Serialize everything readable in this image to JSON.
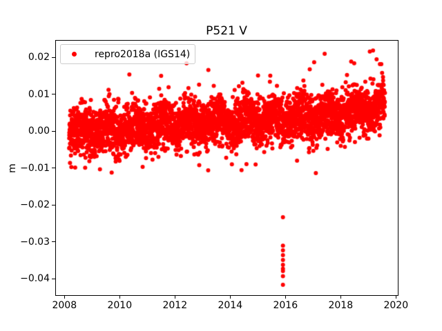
{
  "chart_data": {
    "type": "scatter",
    "title": "P521 V",
    "xlabel": "",
    "ylabel": "m",
    "background": "#ffffff",
    "legend": {
      "label": "repro2018a (IGS14)",
      "location": "upper left",
      "marker_color": "#ff0000"
    },
    "axes": {
      "xlim": [
        2007.6675,
        2020.0675
      ],
      "ylim": [
        -0.04424,
        0.02473
      ],
      "grid": false,
      "xticks": [
        {
          "value": 2008,
          "label": "2008"
        },
        {
          "value": 2010,
          "label": "2010"
        },
        {
          "value": 2012,
          "label": "2012"
        },
        {
          "value": 2014,
          "label": "2014"
        },
        {
          "value": 2016,
          "label": "2016"
        },
        {
          "value": 2018,
          "label": "2018"
        },
        {
          "value": 2020,
          "label": "2020"
        }
      ],
      "yticks": [
        {
          "value": 0.02,
          "label": "0.02"
        },
        {
          "value": 0.01,
          "label": "0.01"
        },
        {
          "value": 0.0,
          "label": "0.00"
        },
        {
          "value": -0.01,
          "label": "−0.01"
        },
        {
          "value": -0.02,
          "label": "−0.02"
        },
        {
          "value": -0.03,
          "label": "−0.03"
        },
        {
          "value": -0.04,
          "label": "−0.04"
        }
      ]
    },
    "series": [
      {
        "name": "repro2018a (IGS14)",
        "color": "#ff0000",
        "marker": "circle",
        "marker_radius_px": 3,
        "band": {
          "x_start": 2008.17,
          "x_end": 2019.6,
          "n_points": 3800,
          "seed": 20,
          "trend_keypoints": [
            [
              2008.2,
              -0.0002
            ],
            [
              2010.0,
              0.0004
            ],
            [
              2012.0,
              0.0019
            ],
            [
              2014.0,
              0.0027
            ],
            [
              2016.0,
              0.0036
            ],
            [
              2018.0,
              0.0048
            ],
            [
              2019.6,
              0.0068
            ]
          ],
          "noise_std": 0.0031,
          "seasonal_amplitude": 0.0013,
          "tail_fraction": 0.05,
          "tail_scale": 1.6,
          "clip": [
            -0.0118,
            0.0225
          ]
        },
        "notable_points": [
          [
            2008.25,
            -0.0097
          ],
          [
            2008.75,
            -0.0099
          ],
          [
            2009.71,
            -0.0112
          ],
          [
            2010.35,
            0.0154
          ],
          [
            2011.5,
            0.015
          ],
          [
            2012.42,
            0.0184
          ],
          [
            2012.88,
            -0.0092
          ],
          [
            2013.21,
            0.0166
          ],
          [
            2014.59,
            -0.0089
          ],
          [
            2014.92,
            -0.009
          ],
          [
            2016.42,
            -0.008
          ],
          [
            2016.88,
            0.0168
          ],
          [
            2017.04,
            0.0187
          ],
          [
            2017.42,
            0.021
          ],
          [
            2018.38,
            0.0189
          ],
          [
            2018.49,
            0.0184
          ],
          [
            2019.17,
            0.0219
          ],
          [
            2019.3,
            0.0195
          ],
          [
            2019.42,
            0.0182
          ],
          [
            2019.47,
            0.0182
          ]
        ],
        "outliers": [
          [
            2015.91,
            -0.0233
          ],
          [
            2015.91,
            -0.031
          ],
          [
            2015.91,
            -0.0323
          ],
          [
            2015.91,
            -0.0336
          ],
          [
            2015.91,
            -0.0349
          ],
          [
            2015.91,
            -0.0362
          ],
          [
            2015.91,
            -0.0373
          ],
          [
            2015.91,
            -0.0379
          ],
          [
            2015.91,
            -0.0393
          ],
          [
            2015.91,
            -0.0416
          ]
        ]
      }
    ]
  }
}
